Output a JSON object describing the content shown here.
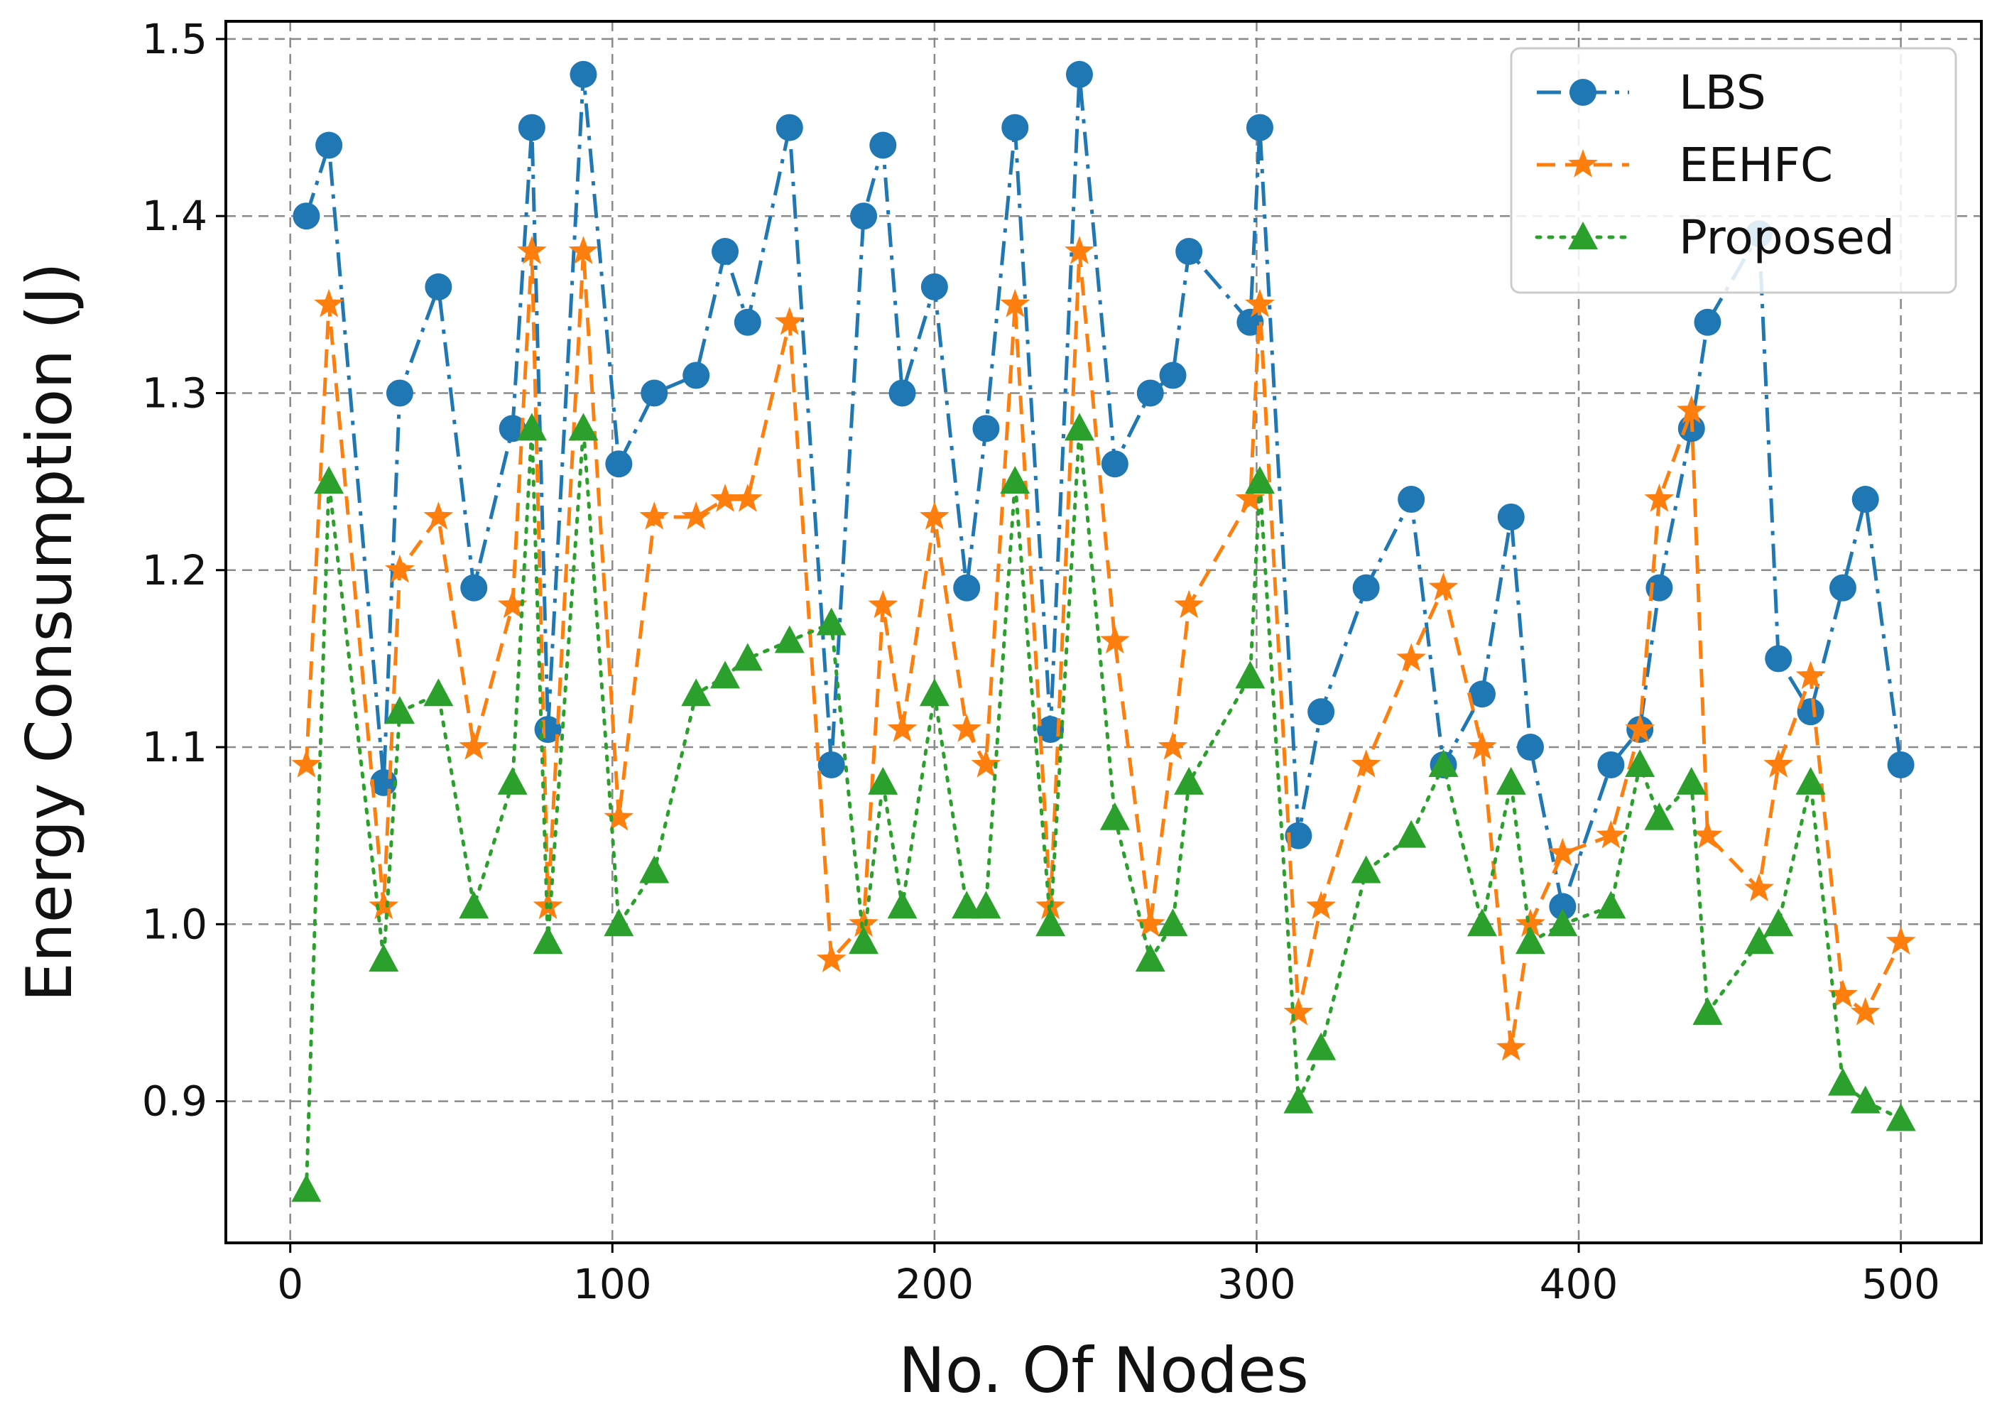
{
  "chart_data": {
    "type": "line",
    "xlabel": "No. Of Nodes",
    "ylabel": "Energy Consumption (J)",
    "xlim": [
      -20,
      525
    ],
    "ylim": [
      0.82,
      1.51
    ],
    "xticks": [
      0,
      100,
      200,
      300,
      400,
      500
    ],
    "yticks": [
      0.9,
      1.0,
      1.1,
      1.2,
      1.3,
      1.4,
      1.5
    ],
    "xtick_labels": [
      "0",
      "100",
      "200",
      "300",
      "400",
      "500"
    ],
    "ytick_labels": [
      "0.9",
      "1.0",
      "1.1",
      "1.2",
      "1.3",
      "1.4",
      "1.5"
    ],
    "grid": true,
    "legend_position": "top-right",
    "series": [
      {
        "name": "LBS",
        "color": "#1f77b4",
        "line_style": "dash-dot",
        "marker": "circle",
        "x": [
          5,
          12,
          29,
          34,
          46,
          57,
          69,
          75,
          80,
          91,
          102,
          113,
          126,
          135,
          142,
          155,
          168,
          178,
          184,
          190,
          200,
          210,
          216,
          225,
          236,
          245,
          256,
          267,
          274,
          279,
          298,
          301,
          313,
          320,
          334,
          348,
          358,
          370,
          379,
          385,
          395,
          410,
          419,
          425,
          435,
          440,
          456,
          462,
          472,
          482,
          489,
          500
        ],
        "y": [
          1.4,
          1.44,
          1.08,
          1.3,
          1.36,
          1.19,
          1.28,
          1.45,
          1.11,
          1.48,
          1.26,
          1.3,
          1.31,
          1.38,
          1.34,
          1.45,
          1.09,
          1.4,
          1.44,
          1.3,
          1.36,
          1.19,
          1.28,
          1.45,
          1.11,
          1.48,
          1.26,
          1.3,
          1.31,
          1.38,
          1.34,
          1.45,
          1.05,
          1.12,
          1.19,
          1.24,
          1.09,
          1.13,
          1.23,
          1.1,
          1.01,
          1.09,
          1.11,
          1.19,
          1.28,
          1.34,
          1.39,
          1.15,
          1.12,
          1.19,
          1.24,
          1.09
        ]
      },
      {
        "name": "EEHFC",
        "color": "#ff7f0e",
        "line_style": "dashed",
        "marker": "star",
        "x": [
          5,
          12,
          29,
          34,
          46,
          57,
          69,
          75,
          80,
          91,
          102,
          113,
          126,
          135,
          142,
          155,
          168,
          178,
          184,
          190,
          200,
          210,
          216,
          225,
          236,
          245,
          256,
          267,
          274,
          279,
          298,
          301,
          313,
          320,
          334,
          348,
          358,
          370,
          379,
          385,
          395,
          410,
          419,
          425,
          435,
          440,
          456,
          462,
          472,
          482,
          489,
          500
        ],
        "y": [
          1.09,
          1.35,
          1.01,
          1.2,
          1.23,
          1.1,
          1.18,
          1.38,
          1.01,
          1.38,
          1.06,
          1.23,
          1.23,
          1.24,
          1.24,
          1.34,
          0.98,
          1.0,
          1.18,
          1.11,
          1.23,
          1.11,
          1.09,
          1.35,
          1.01,
          1.38,
          1.16,
          1.0,
          1.1,
          1.18,
          1.24,
          1.35,
          0.95,
          1.01,
          1.09,
          1.15,
          1.19,
          1.1,
          0.93,
          1.0,
          1.04,
          1.05,
          1.11,
          1.24,
          1.29,
          1.05,
          1.02,
          1.09,
          1.14,
          0.96,
          0.95,
          0.99
        ]
      },
      {
        "name": "Proposed",
        "color": "#2ca02c",
        "line_style": "dotted",
        "marker": "triangle",
        "x": [
          5,
          12,
          29,
          34,
          46,
          57,
          69,
          75,
          80,
          91,
          102,
          113,
          126,
          135,
          142,
          155,
          168,
          178,
          184,
          190,
          200,
          210,
          216,
          225,
          236,
          245,
          256,
          267,
          274,
          279,
          298,
          301,
          313,
          320,
          334,
          348,
          358,
          370,
          379,
          385,
          395,
          410,
          419,
          425,
          435,
          440,
          456,
          462,
          472,
          482,
          489,
          500
        ],
        "y": [
          0.85,
          1.25,
          0.98,
          1.12,
          1.13,
          1.01,
          1.08,
          1.28,
          0.99,
          1.28,
          1.0,
          1.03,
          1.13,
          1.14,
          1.15,
          1.16,
          1.17,
          0.99,
          1.08,
          1.01,
          1.13,
          1.01,
          1.01,
          1.25,
          1.0,
          1.28,
          1.06,
          0.98,
          1.0,
          1.08,
          1.14,
          1.25,
          0.9,
          0.93,
          1.03,
          1.05,
          1.09,
          1.0,
          1.08,
          0.99,
          1.0,
          1.01,
          1.09,
          1.06,
          1.08,
          0.95,
          0.99,
          1.0,
          1.08,
          0.91,
          0.9,
          0.89
        ]
      }
    ]
  }
}
